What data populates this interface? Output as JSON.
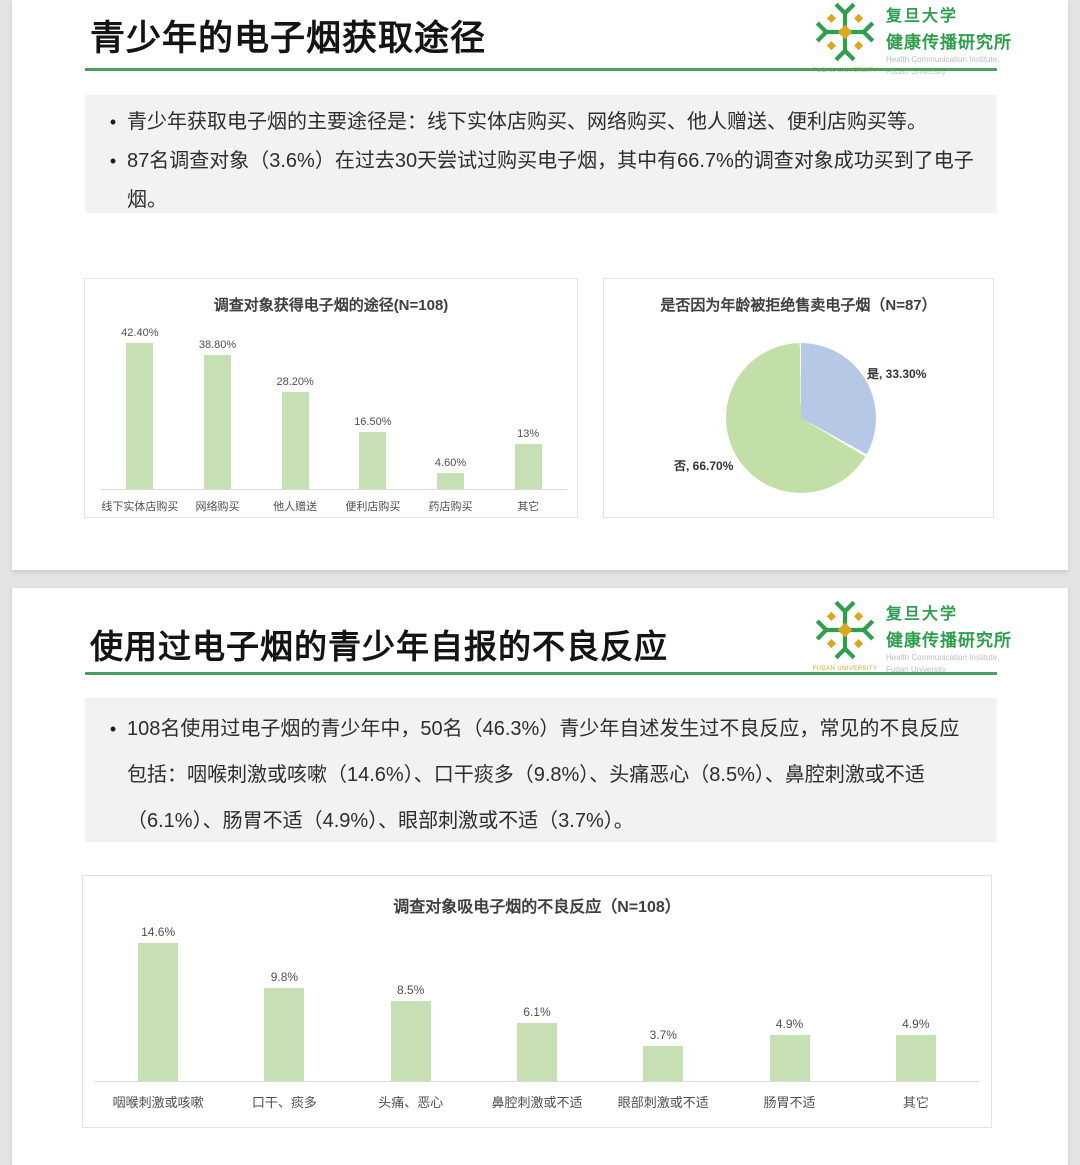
{
  "theme": {
    "page_bg": "#e4e4e4",
    "accent_green": "#46a163",
    "bar_green": "#c6e0b4",
    "pie_blue": "#b7c8e6",
    "pie_green": "#c3dfa8",
    "logo_green": "#2f9e4e",
    "logo_gold": "#dca61f"
  },
  "logo": {
    "cn_line1": "复旦大学",
    "cn_line2": "健康传播研究所",
    "en_line1": "Health Communication Institute,",
    "en_line2": "Fudan University",
    "mark_caption": "FUDAN UNIVERSITY"
  },
  "slide1": {
    "title": "青少年的电子烟获取途径",
    "bullet_glyph": "•",
    "bullets": [
      "青少年获取电子烟的主要途径是：线下实体店购买、网络购买、他人赠送、便利店购买等。",
      "87名调查对象（3.6%）在过去30天尝试过购买电子烟，其中有66.7%的调查对象成功买到了电子烟。"
    ]
  },
  "slide2": {
    "title": "使用过电子烟的青少年自报的不良反应",
    "bullet_glyph": "•",
    "bullets": [
      "108名使用过电子烟的青少年中，50名（46.3%）青少年自述发生过不良反应，常见的不良反应包括：咽喉刺激或咳嗽（14.6%）、口干痰多（9.8%）、头痛恶心（8.5%）、鼻腔刺激或不适（6.1%）、肠胃不适（4.9%）、眼部刺激或不适（3.7%）。"
    ]
  },
  "chart_data": [
    {
      "type": "bar",
      "title": "调查对象获得电子烟的途径(N=108)",
      "categories": [
        "线下实体店购买",
        "网络购买",
        "他人赠送",
        "便利店购买",
        "药店购买",
        "其它"
      ],
      "values": [
        42.4,
        38.8,
        28.2,
        16.5,
        4.6,
        13
      ],
      "value_labels": [
        "42.40%",
        "38.80%",
        "28.20%",
        "16.50%",
        "4.60%",
        "13%"
      ],
      "xlabel": "",
      "ylabel": "",
      "ylim": [
        0,
        45
      ],
      "grid": false,
      "legend": "none",
      "bar_color": "#c6e0b4"
    },
    {
      "type": "pie",
      "title": "是否因为年龄被拒绝售卖电子烟（N=87）",
      "slices": [
        {
          "label": "是",
          "value": 33.3,
          "text": "是, 33.30%",
          "color": "#b7c8e6"
        },
        {
          "label": "否",
          "value": 66.7,
          "text": "否, 66.70%",
          "color": "#c3dfa8"
        }
      ],
      "start_angle_deg": 0,
      "direction": "clockwise",
      "legend": "none"
    },
    {
      "type": "bar",
      "title": "调查对象吸电子烟的不良反应（N=108）",
      "categories": [
        "咽喉刺激或咳嗽",
        "口干、痰多",
        "头痛、恶心",
        "鼻腔刺激或不适",
        "眼部刺激或不适",
        "肠胃不适",
        "其它"
      ],
      "values": [
        14.6,
        9.8,
        8.5,
        6.1,
        3.7,
        4.9,
        4.9
      ],
      "value_labels": [
        "14.6%",
        "9.8%",
        "8.5%",
        "6.1%",
        "3.7%",
        "4.9%",
        "4.9%"
      ],
      "xlabel": "",
      "ylabel": "",
      "ylim": [
        0,
        16
      ],
      "grid": false,
      "legend": "none",
      "bar_color": "#c6e0b4"
    }
  ]
}
